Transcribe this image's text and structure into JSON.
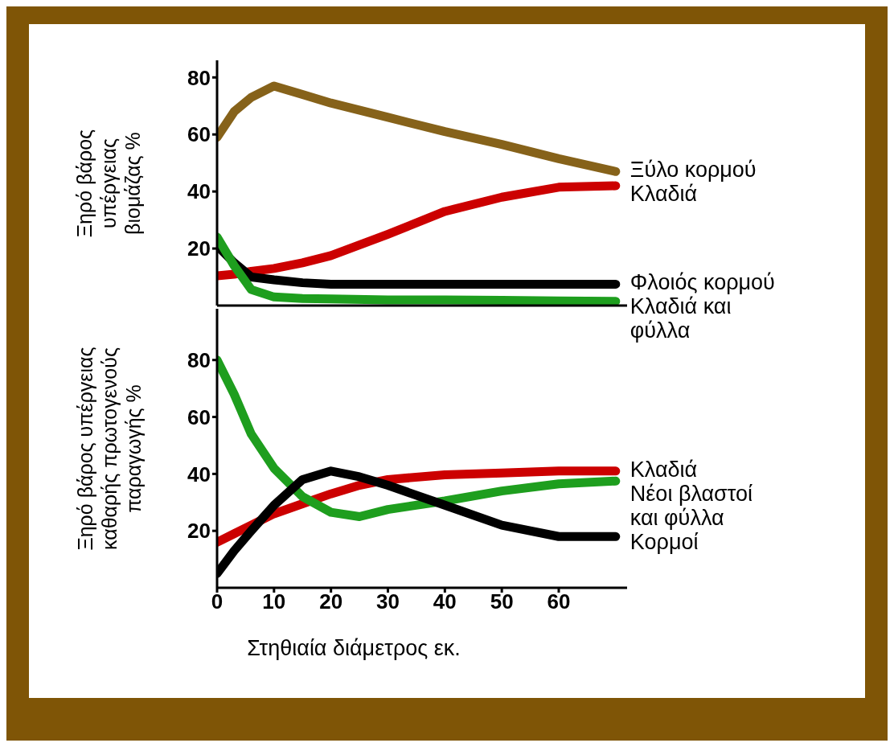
{
  "chart_data": [
    {
      "type": "line",
      "ylabel": "Ξηρό βάρος υπέργειας βιομάζας %",
      "x": [
        0,
        3,
        6,
        10,
        15,
        20,
        30,
        40,
        50,
        60,
        70
      ],
      "xlim": [
        0,
        72
      ],
      "ylim": [
        0,
        86
      ],
      "yticks": [
        20,
        40,
        60,
        80
      ],
      "tick_labels": "y",
      "marker": "none",
      "line_style": "solid",
      "series": [
        {
          "name": "Ξύλο κορμού",
          "color": "#86621a",
          "values": [
            59,
            68,
            73,
            77,
            74,
            71,
            66,
            61,
            56.5,
            51.5,
            47
          ]
        },
        {
          "name": "Κλαδιά",
          "color": "#cc0000",
          "values": [
            10.4,
            11,
            12,
            13,
            15,
            17.5,
            25,
            33,
            38,
            41.5,
            42
          ]
        },
        {
          "name": "Φλοιός κορμού",
          "color": "#000000",
          "values": [
            21,
            15,
            10,
            9,
            8,
            7.5,
            7.5,
            7.5,
            7.5,
            7.5,
            7.5
          ]
        },
        {
          "name": "Κλαδιά και φύλλα",
          "color": "#1e9e1e",
          "values": [
            24,
            14,
            5.6,
            3,
            2.5,
            2.3,
            2,
            2,
            1.8,
            1.6,
            1.5
          ]
        }
      ]
    },
    {
      "type": "line",
      "ylabel": "Ξηρό βάρος υπέργειας καθαρής πρωτογενούς παραγωγής %",
      "xlabel": "Στηθιαία διάμετρος εκ.",
      "x": [
        0,
        3,
        6,
        10,
        15,
        20,
        25,
        30,
        40,
        50,
        60,
        70
      ],
      "xlim": [
        0,
        72
      ],
      "xticks": [
        0,
        10,
        20,
        30,
        40,
        50,
        60
      ],
      "ylim": [
        0,
        98
      ],
      "yticks": [
        20,
        40,
        60,
        80
      ],
      "marker": "none",
      "line_style": "solid",
      "series": [
        {
          "name": "Κλαδιά",
          "color": "#cc0000",
          "values": [
            16,
            19,
            22,
            26,
            29.5,
            33,
            36,
            38,
            39.7,
            40.3,
            41,
            41
          ]
        },
        {
          "name": "Νέοι βλαστοί και φύλλα",
          "color": "#1e9e1e",
          "values": [
            80,
            68,
            54,
            42,
            32,
            26.5,
            25,
            27.5,
            30.5,
            34,
            36.5,
            37.5
          ]
        },
        {
          "name": "Κορμοί",
          "color": "#000000",
          "values": [
            5,
            13,
            20,
            29,
            38,
            41,
            39,
            36,
            29,
            22,
            18,
            18
          ]
        }
      ]
    }
  ]
}
